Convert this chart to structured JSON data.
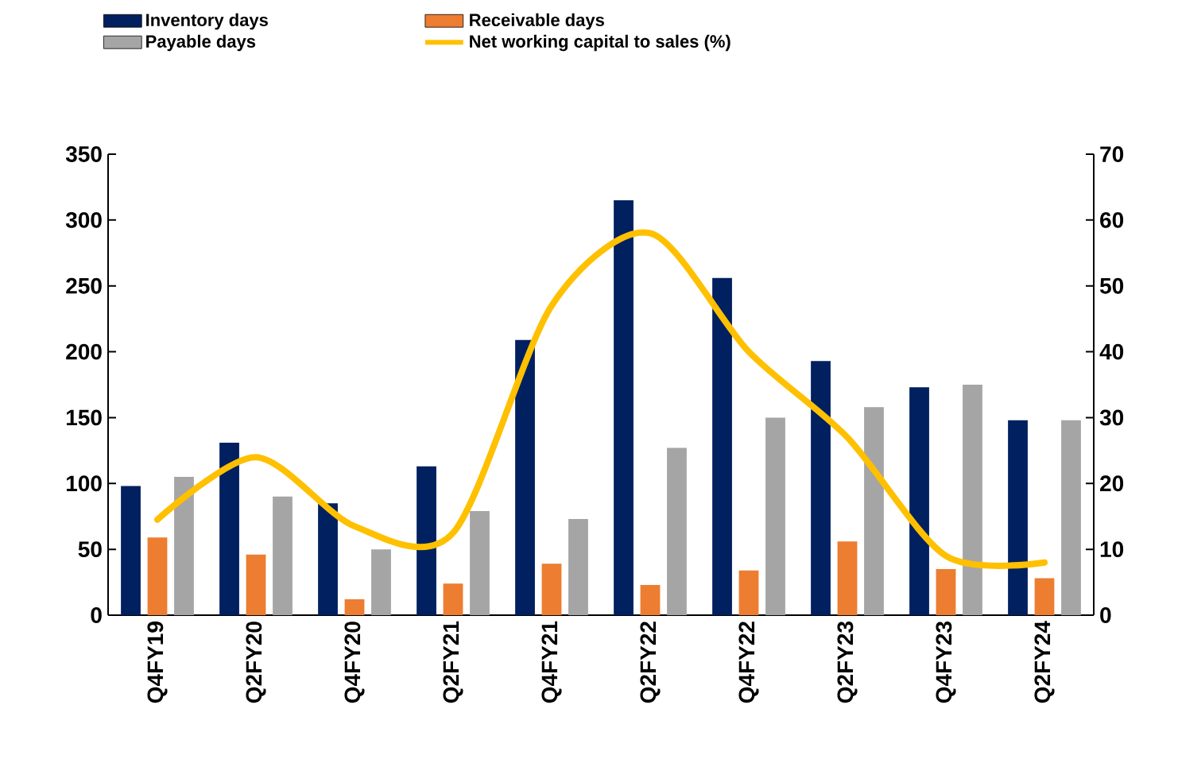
{
  "chart_data": {
    "type": "bar",
    "categories": [
      "Q4FY19",
      "Q2FY20",
      "Q4FY20",
      "Q2FY21",
      "Q4FY21",
      "Q2FY22",
      "Q4FY22",
      "Q2FY23",
      "Q4FY23",
      "Q2FY24"
    ],
    "series": [
      {
        "name": "Inventory days",
        "color": "#002060",
        "values": [
          98,
          131,
          85,
          113,
          209,
          315,
          256,
          193,
          173,
          148
        ]
      },
      {
        "name": "Receivable days",
        "color": "#ed7d31",
        "values": [
          59,
          46,
          12,
          24,
          39,
          23,
          34,
          56,
          35,
          28
        ]
      },
      {
        "name": "Payable days",
        "color": "#a5a5a5",
        "values": [
          105,
          90,
          50,
          79,
          73,
          127,
          150,
          158,
          175,
          148
        ]
      },
      {
        "name": "Net working capital to sales (%)",
        "type": "line",
        "axis": "y2",
        "color": "#ffc000",
        "values": [
          14.5,
          24,
          13.5,
          12.5,
          47,
          58,
          40,
          27,
          9,
          8
        ]
      }
    ],
    "ylim": [
      0,
      350
    ],
    "yticks": [
      0,
      50,
      100,
      150,
      200,
      250,
      300,
      350
    ],
    "y2lim": [
      0,
      70
    ],
    "y2ticks": [
      0,
      10,
      20,
      30,
      40,
      50,
      60,
      70
    ],
    "legend": "top",
    "grid": false
  }
}
